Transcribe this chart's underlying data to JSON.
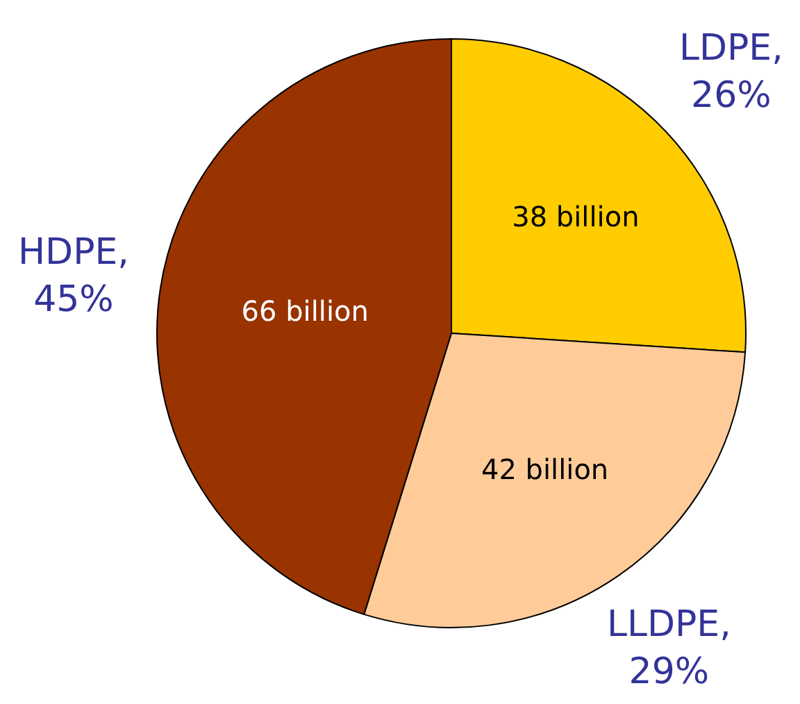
{
  "chart_data": {
    "type": "pie",
    "categories": [
      "LDPE, 26%",
      "LLDPE, 29%",
      "HDPE, 45%"
    ],
    "values": [
      38,
      42,
      66
    ],
    "colors": [
      "#ffcc00",
      "#ffcc99",
      "#993300"
    ],
    "value_labels": [
      "38 billion",
      "42 billion",
      "66 billion"
    ],
    "legend": false
  }
}
